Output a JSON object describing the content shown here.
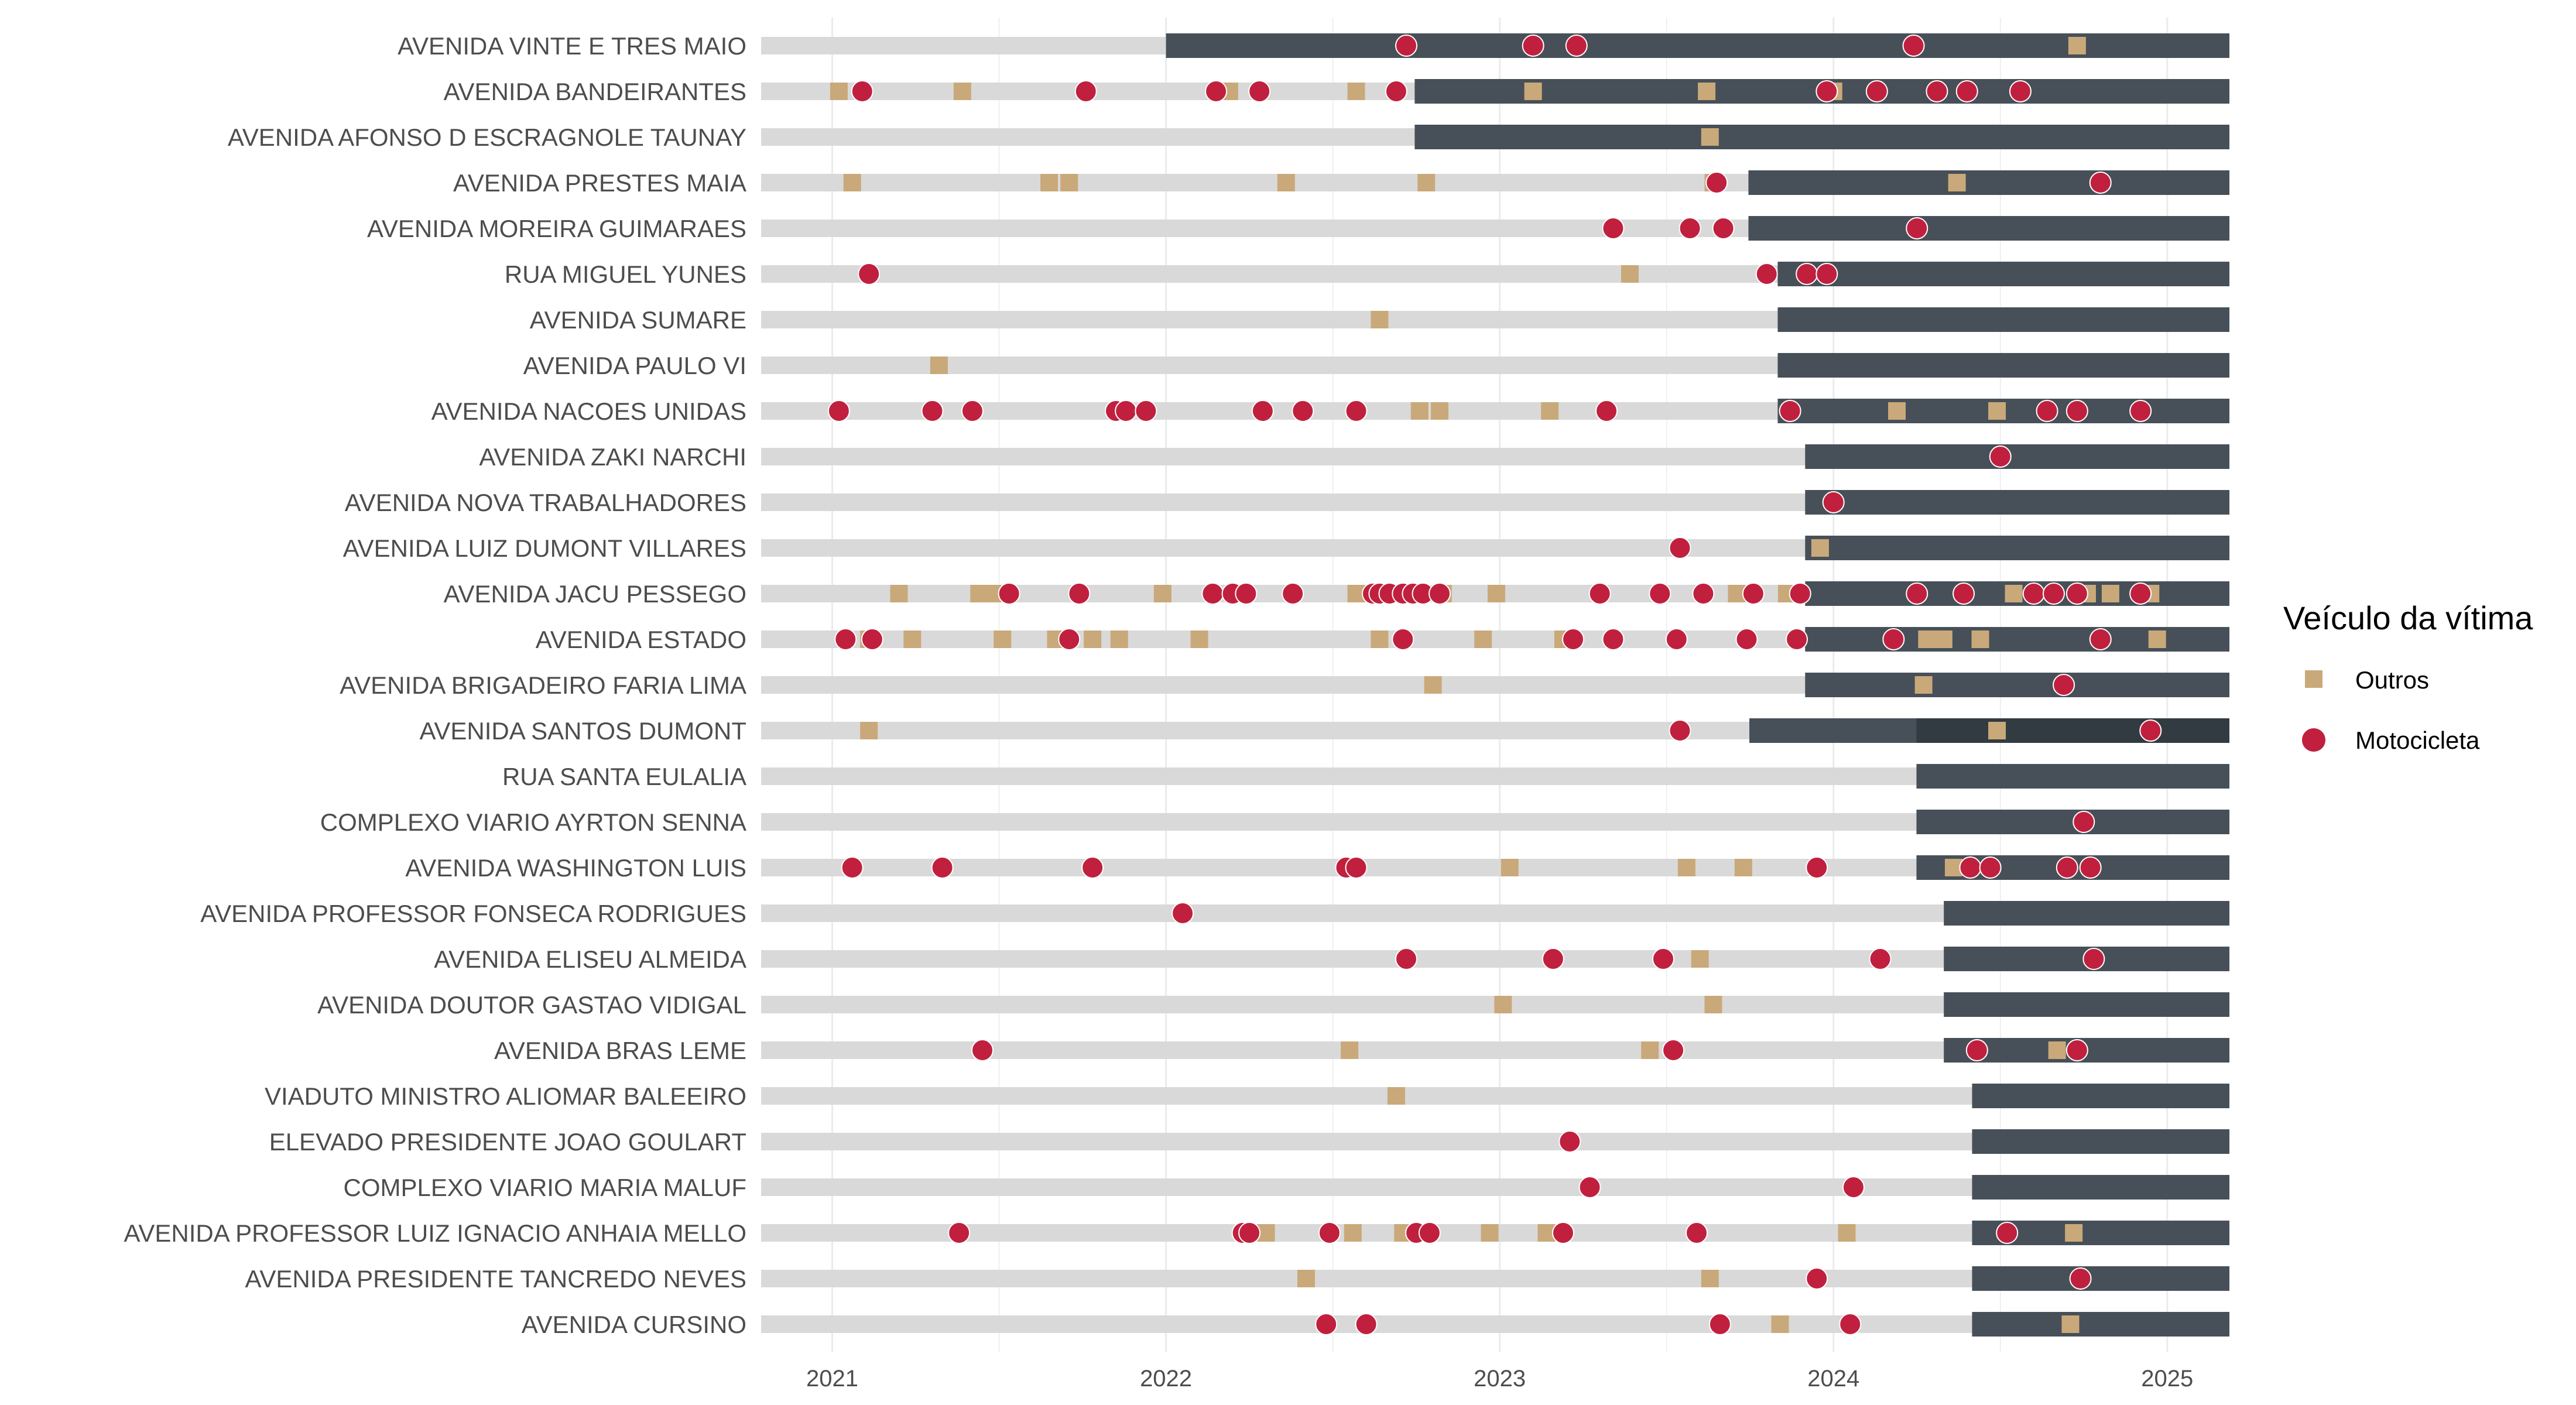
{
  "chart_data": {
    "type": "scatter",
    "description_free": true,
    "x_ticks": [
      "2021",
      "2022",
      "2023",
      "2024",
      "2025"
    ],
    "xlim": [
      "2020-10-15",
      "2025-03-10"
    ],
    "legend": {
      "title": "Veículo da vítima",
      "placement": "right",
      "entries": [
        {
          "key": "outros",
          "label": "Outros",
          "shape": "square",
          "color": "#c9a97a"
        },
        {
          "key": "moto",
          "label": "Motocicleta",
          "shape": "circle",
          "color": "#c0203e"
        }
      ]
    },
    "colors": {
      "bar_before": "#d9d9d9",
      "bar_after": "#475058",
      "bar_overlap": "#333b42",
      "gridline": "#ebebeb",
      "moto": "#c0203e",
      "outros": "#c9a97a"
    },
    "streets": [
      {
        "name": "AVENIDA VINTE E TRES MAIO",
        "start": "2022-01-01",
        "end": "2025-03-10",
        "outros": [
          2024.73
        ],
        "moto": [
          2022.72,
          2023.1,
          2023.23,
          2024.24
        ]
      },
      {
        "name": "AVENIDA BANDEIRANTES",
        "start": "2022-09-30",
        "end": "2025-03-10",
        "outros": [
          2021.02,
          2021.39,
          2022.19,
          2022.57,
          2023.1,
          2023.62,
          2024.0
        ],
        "moto": [
          2021.09,
          2021.76,
          2022.15,
          2022.28,
          2022.69,
          2023.98,
          2024.13,
          2024.31,
          2024.4,
          2024.56
        ]
      },
      {
        "name": "AVENIDA AFONSO D ESCRAGNOLE TAUNAY",
        "start": "2022-09-30",
        "end": "2025-03-10",
        "outros": [
          2023.63
        ],
        "moto": []
      },
      {
        "name": "AVENIDA PRESTES MAIA",
        "start": "2023-09-30",
        "end": "2025-03-10",
        "outros": [
          2021.06,
          2021.65,
          2021.71,
          2022.36,
          2022.78,
          2023.64,
          2024.37
        ],
        "moto": [
          2023.65,
          2024.8
        ]
      },
      {
        "name": "AVENIDA MOREIRA GUIMARAES",
        "start": "2023-09-30",
        "end": "2025-03-10",
        "outros": [],
        "moto": [
          2023.34,
          2023.57,
          2023.67,
          2024.25
        ]
      },
      {
        "name": "RUA MIGUEL YUNES",
        "start": "2023-11-01",
        "end": "2025-03-10",
        "outros": [
          2023.39
        ],
        "moto": [
          2021.11,
          2023.8,
          2023.92,
          2023.98
        ]
      },
      {
        "name": "AVENIDA SUMARE",
        "start": "2023-11-01",
        "end": "2025-03-10",
        "outros": [
          2022.64
        ],
        "moto": []
      },
      {
        "name": "AVENIDA PAULO VI",
        "start": "2023-11-01",
        "end": "2025-03-10",
        "outros": [
          2021.32
        ],
        "moto": []
      },
      {
        "name": "AVENIDA NACOES UNIDAS",
        "start": "2023-11-01",
        "end": "2025-03-10",
        "outros": [
          2022.76,
          2022.82,
          2023.15,
          2024.19,
          2024.49
        ],
        "moto": [
          2021.02,
          2021.3,
          2021.42,
          2021.85,
          2021.88,
          2021.94,
          2022.29,
          2022.41,
          2022.57,
          2023.32,
          2023.87,
          2024.64,
          2024.73,
          2024.92
        ]
      },
      {
        "name": "AVENIDA ZAKI NARCHI",
        "start": "2023-12-01",
        "end": "2025-03-10",
        "outros": [],
        "moto": [
          2024.5
        ]
      },
      {
        "name": "AVENIDA NOVA TRABALHADORES",
        "start": "2023-12-01",
        "end": "2025-03-10",
        "outros": [],
        "moto": [
          2024.0
        ]
      },
      {
        "name": "AVENIDA LUIZ DUMONT VILLARES",
        "start": "2023-12-01",
        "end": "2025-03-10",
        "outros": [
          2023.96
        ],
        "moto": [
          2023.54
        ]
      },
      {
        "name": "AVENIDA JACU PESSEGO",
        "start": "2023-12-01",
        "end": "2025-03-10",
        "outros": [
          2021.2,
          2021.44,
          2021.48,
          2021.99,
          2022.57,
          2022.83,
          2022.99,
          2023.71,
          2023.86,
          2024.54,
          2024.76,
          2024.83,
          2024.95
        ],
        "moto": [
          2021.53,
          2021.74,
          2022.14,
          2022.2,
          2022.24,
          2022.38,
          2022.62,
          2022.64,
          2022.67,
          2022.71,
          2022.74,
          2022.77,
          2022.82,
          2023.3,
          2023.48,
          2023.61,
          2023.76,
          2023.9,
          2024.25,
          2024.39,
          2024.6,
          2024.66,
          2024.73,
          2024.92
        ]
      },
      {
        "name": "AVENIDA ESTADO",
        "start": "2023-12-01",
        "end": "2025-03-10",
        "outros": [
          2021.11,
          2021.24,
          2021.51,
          2021.67,
          2021.78,
          2021.86,
          2022.1,
          2022.64,
          2022.95,
          2023.19,
          2024.28,
          2024.33,
          2024.44,
          2024.97
        ],
        "moto": [
          2021.04,
          2021.12,
          2021.71,
          2022.71,
          2023.22,
          2023.34,
          2023.53,
          2023.74,
          2023.89,
          2024.18,
          2024.8
        ]
      },
      {
        "name": "AVENIDA BRIGADEIRO FARIA LIMA",
        "start": "2023-12-01",
        "end": "2025-03-10",
        "outros": [
          2022.8,
          2024.27
        ],
        "moto": [
          2024.69
        ]
      },
      {
        "name": "AVENIDA SANTOS DUMONT",
        "start": "2023-10-01",
        "end": "2025-03-10",
        "overlap_start": "2024-04-01",
        "outros": [
          2021.11,
          2024.49
        ],
        "moto": [
          2023.54,
          2024.95
        ]
      },
      {
        "name": "RUA SANTA EULALIA",
        "start": "2024-04-01",
        "end": "2025-03-10",
        "outros": [],
        "moto": []
      },
      {
        "name": "COMPLEXO VIARIO AYRTON SENNA",
        "start": "2024-04-01",
        "end": "2025-03-10",
        "outros": [],
        "moto": [
          2024.75
        ]
      },
      {
        "name": "AVENIDA WASHINGTON LUIS",
        "start": "2024-04-01",
        "end": "2025-03-10",
        "outros": [
          2023.03,
          2023.56,
          2023.73,
          2024.36
        ],
        "moto": [
          2021.06,
          2021.33,
          2021.78,
          2022.54,
          2022.57,
          2023.95,
          2024.41,
          2024.47,
          2024.7,
          2024.77
        ]
      },
      {
        "name": "AVENIDA PROFESSOR FONSECA RODRIGUES",
        "start": "2024-05-01",
        "end": "2025-03-10",
        "outros": [],
        "moto": [
          2022.05
        ]
      },
      {
        "name": "AVENIDA ELISEU ALMEIDA",
        "start": "2024-05-01",
        "end": "2025-03-10",
        "outros": [
          2023.6
        ],
        "moto": [
          2022.72,
          2023.16,
          2023.49,
          2024.14,
          2024.78
        ]
      },
      {
        "name": "AVENIDA DOUTOR GASTAO VIDIGAL",
        "start": "2024-05-01",
        "end": "2025-03-10",
        "outros": [
          2023.01,
          2023.64
        ],
        "moto": []
      },
      {
        "name": "AVENIDA BRAS LEME",
        "start": "2024-05-01",
        "end": "2025-03-10",
        "outros": [
          2022.55,
          2023.45,
          2024.67
        ],
        "moto": [
          2021.45,
          2023.52,
          2024.43,
          2024.73
        ]
      },
      {
        "name": "VIADUTO MINISTRO ALIOMAR BALEEIRO",
        "start": "2024-06-01",
        "end": "2025-03-10",
        "outros": [
          2022.69
        ],
        "moto": []
      },
      {
        "name": "ELEVADO PRESIDENTE JOAO GOULART",
        "start": "2024-06-01",
        "end": "2025-03-10",
        "outros": [],
        "moto": [
          2023.21
        ]
      },
      {
        "name": "COMPLEXO VIARIO MARIA MALUF",
        "start": "2024-06-01",
        "end": "2025-03-10",
        "outros": [],
        "moto": [
          2023.27,
          2024.06
        ]
      },
      {
        "name": "AVENIDA PROFESSOR LUIZ IGNACIO ANHAIA MELLO",
        "start": "2024-06-01",
        "end": "2025-03-10",
        "outros": [
          2022.3,
          2022.56,
          2022.71,
          2022.97,
          2023.14,
          2024.04,
          2024.72
        ],
        "moto": [
          2021.38,
          2022.23,
          2022.25,
          2022.49,
          2022.75,
          2022.79,
          2023.19,
          2023.59,
          2024.52
        ]
      },
      {
        "name": "AVENIDA PRESIDENTE TANCREDO NEVES",
        "start": "2024-06-01",
        "end": "2025-03-10",
        "outros": [
          2022.42,
          2023.63
        ],
        "moto": [
          2023.95,
          2024.74
        ]
      },
      {
        "name": "AVENIDA CURSINO",
        "start": "2024-06-01",
        "end": "2025-03-10",
        "outros": [
          2023.84,
          2024.71
        ],
        "moto": [
          2022.48,
          2022.6,
          2023.66,
          2024.05
        ]
      }
    ]
  }
}
